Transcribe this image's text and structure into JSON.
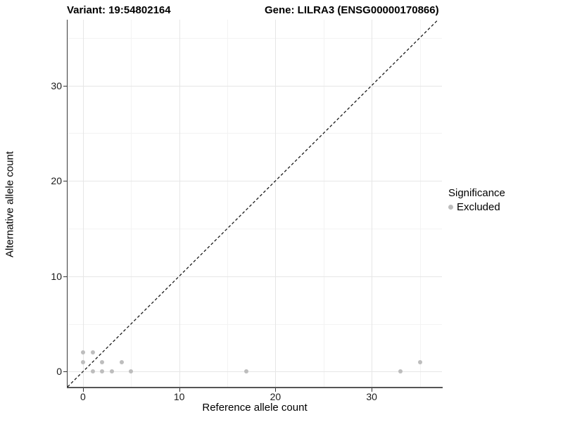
{
  "figure": {
    "title_left": "Variant: 19:54802164",
    "title_right": "Gene: LILRA3 (ENSG00000170866)"
  },
  "chart_data": {
    "type": "scatter",
    "xlabel": "Reference allele count",
    "ylabel": "Alternative allele count",
    "xlim": [
      -1.6,
      37.3
    ],
    "ylim": [
      -1.6,
      36.9
    ],
    "x_ticks": [
      0,
      10,
      20,
      30
    ],
    "y_ticks": [
      0,
      10,
      20,
      30
    ],
    "x_minor_ticks": [
      5,
      15,
      25,
      35
    ],
    "y_minor_ticks": [
      5,
      15,
      25,
      35
    ],
    "grid": "on",
    "series": [
      {
        "name": "Excluded",
        "color": "#bdbdbd",
        "marker": "circle",
        "marker_size_px": 6,
        "points": [
          [
            0,
            1
          ],
          [
            0,
            2
          ],
          [
            1,
            0
          ],
          [
            1,
            2
          ],
          [
            2,
            0
          ],
          [
            2,
            1
          ],
          [
            3,
            0
          ],
          [
            4,
            1
          ],
          [
            5,
            0
          ],
          [
            17,
            0
          ],
          [
            33,
            0
          ],
          [
            35,
            1
          ]
        ]
      }
    ],
    "reference_line": {
      "type": "identity",
      "equation": "y = x",
      "style": "dashed",
      "color": "#1a1a1a"
    },
    "legend": {
      "title": "Significance",
      "position": "right",
      "items": [
        {
          "label": "Excluded",
          "color": "#bdbdbd"
        }
      ]
    }
  }
}
